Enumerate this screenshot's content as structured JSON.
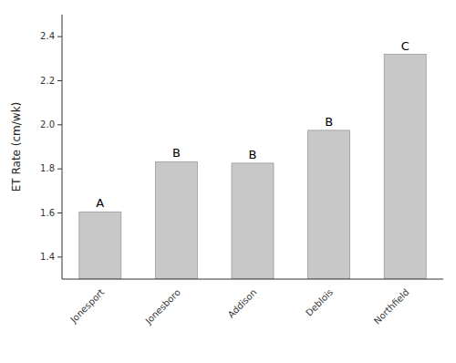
{
  "chart_data": {
    "type": "bar",
    "categories": [
      "Jonesport",
      "Jonesboro",
      "Addison",
      "Deblois",
      "Northfield"
    ],
    "values": [
      1.605,
      1.832,
      1.826,
      1.975,
      2.32
    ],
    "annotations": [
      "A",
      "B",
      "B",
      "B",
      "C"
    ],
    "color": "#c8c8c8",
    "ylabel": "ET Rate (cm/wk)",
    "ylim": [
      1.3,
      2.5
    ],
    "yticks": [
      1.4,
      1.6,
      1.8,
      {
        "value": 2.0,
        "label": "2.0"
      },
      2.2,
      2.4
    ],
    "grid": false
  }
}
